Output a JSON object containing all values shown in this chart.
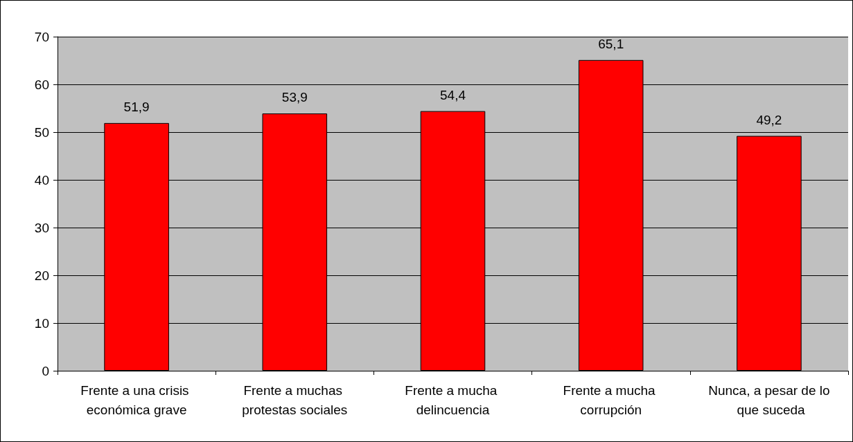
{
  "chart_data": {
    "type": "bar",
    "categories": [
      "Frente a una crisis económica grave",
      "Frente a muchas protestas sociales",
      "Frente a mucha delincuencia",
      "Frente a mucha corrupción",
      "Nunca, a pesar de lo que suceda"
    ],
    "values": [
      51.9,
      53.9,
      54.4,
      65.1,
      49.2
    ],
    "value_labels": [
      "51,9",
      "53,9",
      "54,4",
      "65,1",
      "49,2"
    ],
    "color": "#ff0000",
    "ylim": [
      0,
      70
    ],
    "yticks": [
      0,
      10,
      20,
      30,
      40,
      50,
      60,
      70
    ],
    "grid": "y"
  }
}
